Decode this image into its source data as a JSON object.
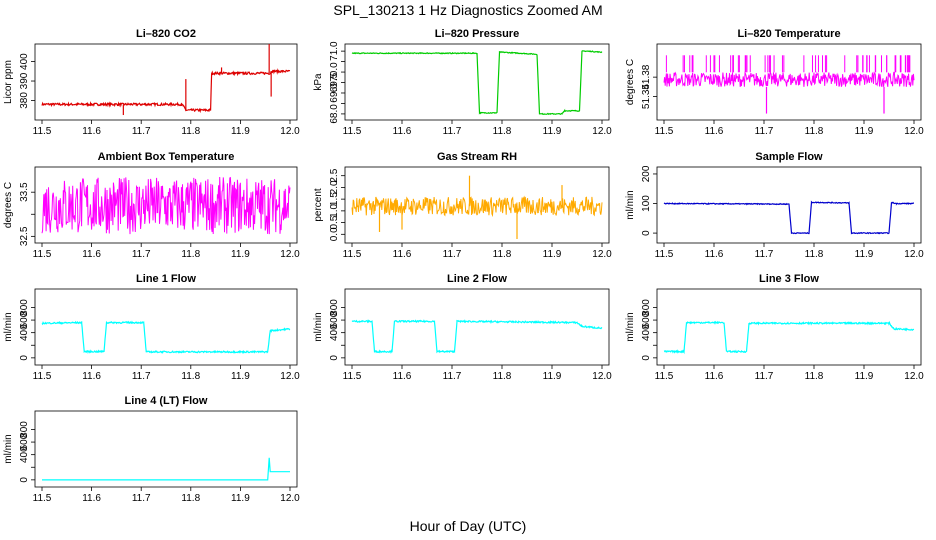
{
  "figure": {
    "title": "SPL_130213 1 Hz Diagnostics Zoomed AM",
    "xlabel": "Hour of Day (UTC)"
  },
  "chart_data": [
    {
      "id": "co2",
      "type": "line",
      "title": "Li–820 CO2",
      "ylabel": "Licor ppm",
      "color": "#dd0000",
      "xlim": [
        11.5,
        12.0
      ],
      "ylim": [
        372,
        407
      ],
      "xticks": [
        "11.5",
        "11.6",
        "11.7",
        "11.8",
        "11.9",
        "12.0"
      ],
      "yticks": [
        [
          380,
          "380"
        ],
        [
          390,
          "390"
        ],
        [
          400,
          "400"
        ]
      ],
      "noise": 0.6,
      "points": [
        [
          11.5,
          378
        ],
        [
          11.78,
          378
        ],
        [
          11.785,
          377
        ],
        [
          11.79,
          375
        ],
        [
          11.8,
          375
        ],
        [
          11.84,
          375
        ],
        [
          11.842,
          394
        ],
        [
          11.96,
          394
        ],
        [
          11.962,
          395
        ],
        [
          12.0,
          395
        ]
      ],
      "spikes": [
        [
          11.664,
          372.5
        ],
        [
          11.79,
          391
        ],
        [
          11.862,
          397
        ],
        [
          11.958,
          409
        ],
        [
          11.962,
          382
        ]
      ]
    },
    {
      "id": "pressure",
      "type": "line",
      "title": "Li–820 Pressure",
      "ylabel": "kPa",
      "color": "#00cc00",
      "xlim": [
        11.5,
        12.0
      ],
      "ylim": [
        67.9,
        71.15
      ],
      "xticks": [
        "11.5",
        "11.6",
        "11.7",
        "11.8",
        "11.9",
        "12.0"
      ],
      "yticks": [
        [
          68.0,
          "68.0"
        ],
        [
          68.5,
          "68.5"
        ],
        [
          69.0,
          "69.0"
        ],
        [
          69.5,
          "69.5"
        ],
        [
          70.0,
          "70.0"
        ],
        [
          70.5,
          "70.5"
        ],
        [
          71.0,
          "71.0"
        ]
      ],
      "ytick_labels_shown": [
        "68.0",
        "69.0",
        "69.5",
        "70.0",
        "71.0"
      ],
      "noise": 0.02,
      "points": [
        [
          11.5,
          70.9
        ],
        [
          11.75,
          70.9
        ],
        [
          11.755,
          68.05
        ],
        [
          11.79,
          68.05
        ],
        [
          11.795,
          70.95
        ],
        [
          11.8,
          70.95
        ],
        [
          11.87,
          70.85
        ],
        [
          11.875,
          68.0
        ],
        [
          11.92,
          68.0
        ],
        [
          11.925,
          68.15
        ],
        [
          11.955,
          68.15
        ],
        [
          11.96,
          71.0
        ],
        [
          11.97,
          71.0
        ],
        [
          12.0,
          70.95
        ]
      ],
      "spikes": []
    },
    {
      "id": "temp",
      "type": "line",
      "title": "Li–820 Temperature",
      "ylabel": "degrees C",
      "color": "#ff00ff",
      "xlim": [
        11.5,
        12.0
      ],
      "ylim": [
        51.3,
        51.44
      ],
      "xticks": [
        "11.5",
        "11.6",
        "11.7",
        "11.8",
        "11.9",
        "12.0"
      ],
      "yticks": [
        [
          51.34,
          "51.34"
        ],
        [
          51.38,
          "51.38"
        ]
      ],
      "band": [
        51.36,
        51.39
      ],
      "band_high": 51.425,
      "band_low": 51.305,
      "noise": 0,
      "points": [],
      "spikes": []
    },
    {
      "id": "abox",
      "type": "line",
      "title": "Ambient Box Temperature",
      "ylabel": "degrees C",
      "color": "#ff00ff",
      "xlim": [
        11.5,
        12.0
      ],
      "ylim": [
        32.44,
        33.98
      ],
      "xticks": [
        "11.5",
        "11.6",
        "11.7",
        "11.8",
        "11.9",
        "12.0"
      ],
      "yticks": [
        [
          32.5,
          "32.5"
        ],
        [
          33.0,
          ""
        ],
        [
          33.5,
          "33.5"
        ]
      ],
      "band": [
        32.55,
        33.85
      ],
      "noise": 0,
      "points": [],
      "spikes": []
    },
    {
      "id": "rh",
      "type": "line",
      "title": "Gas Stream RH",
      "ylabel": "percent",
      "color": "#ffaa00",
      "xlim": [
        11.5,
        12.0
      ],
      "ylim": [
        -0.2,
        2.7
      ],
      "xticks": [
        "11.5",
        "11.6",
        "11.7",
        "11.8",
        "11.9",
        "12.0"
      ],
      "yticks": [
        [
          0.0,
          "0.0"
        ],
        [
          0.5,
          "0.5"
        ],
        [
          1.0,
          "1.0"
        ],
        [
          1.5,
          "1.5"
        ],
        [
          2.0,
          "2.0"
        ],
        [
          2.5,
          "2.5"
        ]
      ],
      "band": [
        0.8,
        1.6
      ],
      "noise": 0,
      "points": [],
      "spikes": [
        [
          11.735,
          2.5
        ],
        [
          11.83,
          -0.2
        ],
        [
          11.555,
          0.1
        ],
        [
          11.6,
          0.2
        ],
        [
          11.92,
          2.1
        ]
      ]
    },
    {
      "id": "sflow",
      "type": "line",
      "title": "Sample Flow",
      "ylabel": "ml/min",
      "color": "#0000cc",
      "xlim": [
        11.5,
        12.0
      ],
      "ylim": [
        -20,
        210
      ],
      "xticks": [
        "11.5",
        "11.6",
        "11.7",
        "11.8",
        "11.9",
        "12.0"
      ],
      "yticks": [
        [
          0,
          "0"
        ],
        [
          100,
          "100"
        ],
        [
          200,
          "200"
        ]
      ],
      "noise": 1.5,
      "points": [
        [
          11.5,
          100
        ],
        [
          11.75,
          98
        ],
        [
          11.755,
          0
        ],
        [
          11.79,
          0
        ],
        [
          11.795,
          104
        ],
        [
          11.87,
          102
        ],
        [
          11.875,
          0
        ],
        [
          11.95,
          0
        ],
        [
          11.955,
          103
        ],
        [
          11.965,
          100
        ],
        [
          12.0,
          100
        ]
      ],
      "spikes": []
    },
    {
      "id": "line1",
      "type": "line",
      "title": "Line 1 Flow",
      "ylabel": "ml/min",
      "color": "#00ffff",
      "xlim": [
        11.5,
        12.0
      ],
      "ylim": [
        -50,
        1030
      ],
      "xticks": [
        "11.5",
        "11.6",
        "11.7",
        "11.8",
        "11.9",
        "12.0"
      ],
      "yticks": [
        [
          0,
          "0"
        ],
        [
          200,
          ""
        ],
        [
          400,
          "400"
        ],
        [
          600,
          "600"
        ],
        [
          800,
          "800"
        ]
      ],
      "noise": 12,
      "points": [
        [
          11.5,
          550
        ],
        [
          11.58,
          560
        ],
        [
          11.585,
          100
        ],
        [
          11.625,
          100
        ],
        [
          11.63,
          560
        ],
        [
          11.705,
          560
        ],
        [
          11.71,
          95
        ],
        [
          11.955,
          95
        ],
        [
          11.96,
          430
        ],
        [
          12.0,
          460
        ]
      ],
      "spikes": []
    },
    {
      "id": "line2",
      "type": "line",
      "title": "Line 2 Flow",
      "ylabel": "ml/min",
      "color": "#00ffff",
      "xlim": [
        11.5,
        12.0
      ],
      "ylim": [
        -50,
        1030
      ],
      "xticks": [
        "11.5",
        "11.6",
        "11.7",
        "11.8",
        "11.9",
        "12.0"
      ],
      "yticks": [
        [
          0,
          "0"
        ],
        [
          200,
          ""
        ],
        [
          400,
          "400"
        ],
        [
          600,
          "600"
        ],
        [
          800,
          "800"
        ]
      ],
      "noise": 12,
      "points": [
        [
          11.5,
          580
        ],
        [
          11.54,
          580
        ],
        [
          11.545,
          100
        ],
        [
          11.58,
          100
        ],
        [
          11.585,
          580
        ],
        [
          11.665,
          580
        ],
        [
          11.67,
          100
        ],
        [
          11.705,
          100
        ],
        [
          11.71,
          580
        ],
        [
          11.95,
          560
        ],
        [
          11.96,
          500
        ],
        [
          12.0,
          470
        ]
      ],
      "spikes": []
    },
    {
      "id": "line3",
      "type": "line",
      "title": "Line 3 Flow",
      "ylabel": "ml/min",
      "color": "#00ffff",
      "xlim": [
        11.5,
        12.0
      ],
      "ylim": [
        -50,
        1030
      ],
      "xticks": [
        "11.5",
        "11.6",
        "11.7",
        "11.8",
        "11.9",
        "12.0"
      ],
      "yticks": [
        [
          0,
          "0"
        ],
        [
          200,
          ""
        ],
        [
          400,
          "400"
        ],
        [
          600,
          "600"
        ],
        [
          800,
          "800"
        ]
      ],
      "noise": 12,
      "points": [
        [
          11.5,
          100
        ],
        [
          11.54,
          100
        ],
        [
          11.545,
          560
        ],
        [
          11.62,
          560
        ],
        [
          11.625,
          100
        ],
        [
          11.665,
          100
        ],
        [
          11.67,
          550
        ],
        [
          11.95,
          550
        ],
        [
          11.96,
          460
        ],
        [
          12.0,
          450
        ]
      ],
      "spikes": []
    },
    {
      "id": "line4",
      "type": "line",
      "title": "Line 4 (LT) Flow",
      "ylabel": "ml/min",
      "color": "#00ffff",
      "xlim": [
        11.5,
        12.0
      ],
      "ylim": [
        -50,
        1030
      ],
      "xticks": [
        "11.5",
        "11.6",
        "11.7",
        "11.8",
        "11.9",
        "12.0"
      ],
      "yticks": [
        [
          0,
          "0"
        ],
        [
          200,
          ""
        ],
        [
          400,
          "400"
        ],
        [
          600,
          "600"
        ],
        [
          800,
          "800"
        ]
      ],
      "noise": 0,
      "points": [
        [
          11.5,
          0
        ],
        [
          11.955,
          0
        ],
        [
          11.958,
          350
        ],
        [
          11.96,
          130
        ],
        [
          12.0,
          130
        ]
      ],
      "spikes": []
    }
  ]
}
